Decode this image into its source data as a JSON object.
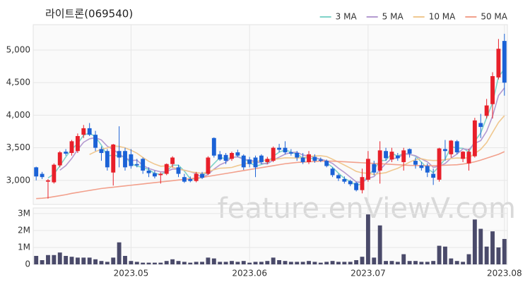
{
  "watermark": "feature.enViewV.com",
  "chart_data": [
    {
      "type": "candlestick",
      "title": "라이트론(069540)",
      "open": [
        3200,
        3100,
        2980,
        2970,
        3230,
        3440,
        3420,
        3450,
        3700,
        3800,
        3700,
        3480,
        3450,
        3120,
        3450,
        3450,
        3400,
        3250,
        3330,
        3150,
        3110,
        3080,
        3100,
        3250,
        3200,
        3050,
        3020,
        2990,
        3100,
        3100,
        3650,
        3400,
        3390,
        3330,
        3430,
        3380,
        3320,
        3350,
        3380,
        3280,
        3300,
        3500,
        3500,
        3430,
        3420,
        3350,
        3280,
        3360,
        3320,
        3300,
        3180,
        3080,
        3020,
        2990,
        2960,
        2850,
        3010,
        3250,
        3150,
        3450,
        3320,
        3380,
        3280,
        3480,
        3300,
        3230,
        3220,
        3100,
        3010,
        3480,
        3400,
        3600,
        3330,
        3260,
        3370,
        3880,
        3990,
        4170,
        4580,
        5140
      ],
      "high": [
        3210,
        3130,
        3020,
        3260,
        3450,
        3480,
        3620,
        3720,
        3850,
        3880,
        3760,
        3520,
        3480,
        3560,
        3830,
        3500,
        3480,
        3330,
        3350,
        3200,
        3150,
        3120,
        3260,
        3370,
        3240,
        3100,
        3060,
        3130,
        3130,
        3370,
        3660,
        3450,
        3420,
        3440,
        3470,
        3400,
        3360,
        3380,
        3400,
        3360,
        3520,
        3560,
        3600,
        3480,
        3450,
        3420,
        3450,
        3400,
        3350,
        3320,
        3200,
        3100,
        3060,
        3010,
        2980,
        3180,
        3450,
        3300,
        3600,
        3500,
        3500,
        3420,
        3500,
        3490,
        3350,
        3280,
        3260,
        3180,
        3500,
        3620,
        3620,
        3620,
        3450,
        3480,
        3960,
        4020,
        4250,
        4660,
        5170,
        5250
      ],
      "low": [
        3000,
        3020,
        2720,
        2950,
        3200,
        3380,
        3380,
        3420,
        3650,
        3680,
        3450,
        3300,
        3150,
        2920,
        3200,
        3150,
        3180,
        3200,
        3100,
        3050,
        3030,
        2950,
        3080,
        3200,
        3050,
        2960,
        2970,
        2970,
        3020,
        3080,
        3350,
        3300,
        3250,
        3300,
        3360,
        3160,
        3200,
        3050,
        3250,
        3250,
        3280,
        3430,
        3400,
        3380,
        3300,
        3250,
        3250,
        3270,
        3280,
        3200,
        3050,
        2990,
        2950,
        2910,
        2830,
        2800,
        2980,
        3080,
        2950,
        3300,
        3280,
        3300,
        3150,
        3350,
        3180,
        3150,
        3050,
        2930,
        2980,
        3300,
        3350,
        3400,
        3280,
        3150,
        3350,
        3650,
        3950,
        3950,
        4550,
        4300
      ],
      "close": [
        3060,
        3050,
        3000,
        3240,
        3430,
        3410,
        3600,
        3680,
        3800,
        3700,
        3500,
        3420,
        3200,
        3550,
        3350,
        3200,
        3220,
        3230,
        3150,
        3110,
        3060,
        3100,
        3250,
        3350,
        3100,
        2980,
        2990,
        3100,
        3040,
        3350,
        3380,
        3320,
        3300,
        3420,
        3380,
        3200,
        3250,
        3200,
        3280,
        3330,
        3500,
        3470,
        3430,
        3410,
        3350,
        3280,
        3400,
        3300,
        3300,
        3220,
        3080,
        3030,
        2980,
        2940,
        2850,
        3050,
        3330,
        3120,
        3460,
        3340,
        3440,
        3340,
        3460,
        3410,
        3240,
        3190,
        3120,
        3040,
        3490,
        3450,
        3610,
        3430,
        3440,
        3440,
        3920,
        3820,
        4150,
        4600,
        5020,
        4500
      ],
      "up_color": "#e8202a",
      "down_color": "#1b62d6",
      "series": [
        {
          "name": "3 MA",
          "color": "#7fd3c8",
          "values": [
            null,
            null,
            3037,
            3097,
            3223,
            3360,
            3480,
            3563,
            3693,
            3727,
            3667,
            3540,
            3373,
            3390,
            3367,
            3367,
            3257,
            3217,
            3200,
            3163,
            3107,
            3090,
            3137,
            3233,
            3233,
            3143,
            3023,
            3023,
            3043,
            3163,
            3257,
            3350,
            3333,
            3347,
            3367,
            3333,
            3277,
            3217,
            3243,
            3270,
            3370,
            3433,
            3467,
            3437,
            3397,
            3347,
            3343,
            3327,
            3333,
            3273,
            3200,
            3110,
            3030,
            2983,
            2923,
            2947,
            3077,
            3167,
            3303,
            3307,
            3413,
            3373,
            3413,
            3403,
            3370,
            3280,
            3183,
            3117,
            3217,
            3327,
            3517,
            3497,
            3493,
            3437,
            3600,
            3727,
            3963,
            4190,
            4590,
            4707
          ]
        },
        {
          "name": "5 MA",
          "color": "#b49ad0",
          "values": [
            null,
            null,
            null,
            null,
            3156,
            3226,
            3336,
            3472,
            3584,
            3638,
            3656,
            3620,
            3524,
            3474,
            3404,
            3344,
            3304,
            3310,
            3230,
            3182,
            3154,
            3130,
            3134,
            3174,
            3172,
            3156,
            3134,
            3104,
            3042,
            3092,
            3172,
            3238,
            3278,
            3354,
            3360,
            3324,
            3310,
            3290,
            3262,
            3252,
            3312,
            3356,
            3402,
            3428,
            3432,
            3388,
            3374,
            3348,
            3326,
            3300,
            3260,
            3186,
            3122,
            3050,
            2976,
            2970,
            3030,
            3058,
            3162,
            3260,
            3338,
            3340,
            3408,
            3398,
            3378,
            3328,
            3284,
            3200,
            3216,
            3258,
            3342,
            3404,
            3484,
            3474,
            3568,
            3610,
            3754,
            3986,
            4302,
            4418
          ]
        },
        {
          "name": "10 MA",
          "color": "#f0c890",
          "values": [
            null,
            null,
            null,
            null,
            null,
            null,
            null,
            null,
            null,
            3397,
            3441,
            3478,
            3498,
            3529,
            3521,
            3500,
            3462,
            3417,
            3352,
            3293,
            3249,
            3217,
            3222,
            3202,
            3177,
            3155,
            3132,
            3119,
            3108,
            3132,
            3164,
            3186,
            3191,
            3198,
            3226,
            3248,
            3274,
            3284,
            3308,
            3306,
            3318,
            3333,
            3346,
            3345,
            3342,
            3350,
            3365,
            3375,
            3377,
            3366,
            3324,
            3280,
            3235,
            3188,
            3138,
            3115,
            3108,
            3090,
            3106,
            3118,
            3154,
            3185,
            3233,
            3280,
            3319,
            3333,
            3312,
            3304,
            3307,
            3318,
            3335,
            3344,
            3342,
            3345,
            3413,
            3476,
            3579,
            3735,
            3888,
            3993
          ]
        },
        {
          "name": "50 MA",
          "color": "#f2a08c",
          "values": [
            2720,
            2725,
            2735,
            2750,
            2765,
            2780,
            2800,
            2815,
            2830,
            2845,
            2860,
            2875,
            2885,
            2895,
            2905,
            2915,
            2925,
            2935,
            2945,
            2955,
            2965,
            2975,
            2985,
            2995,
            3005,
            3015,
            3025,
            3035,
            3045,
            3060,
            3075,
            3090,
            3105,
            3120,
            3135,
            3150,
            3165,
            3180,
            3195,
            3210,
            3225,
            3240,
            3255,
            3265,
            3275,
            3280,
            3285,
            3290,
            3295,
            3295,
            3295,
            3290,
            3285,
            3280,
            3275,
            3270,
            3265,
            3260,
            3255,
            3250,
            3245,
            3240,
            3235,
            3230,
            3228,
            3226,
            3225,
            3225,
            3228,
            3232,
            3236,
            3240,
            3250,
            3265,
            3285,
            3310,
            3340,
            3370,
            3400,
            3440
          ]
        }
      ],
      "ylim": [
        2630,
        5390
      ],
      "yticks": [
        {
          "value": 3000,
          "label": "3,000"
        },
        {
          "value": 3500,
          "label": "3,500"
        },
        {
          "value": 4000,
          "label": "4,000"
        },
        {
          "value": 4500,
          "label": "4,500"
        },
        {
          "value": 5000,
          "label": "5,000"
        }
      ],
      "grid": true,
      "legend": "top-right"
    },
    {
      "type": "bar",
      "color": "#4a4a6a",
      "categories": [
        null,
        null,
        null,
        null,
        null,
        null,
        null,
        null,
        null,
        null,
        null,
        null,
        null,
        null,
        null,
        null,
        "2023.05",
        null,
        null,
        null,
        null,
        null,
        null,
        null,
        null,
        null,
        null,
        null,
        null,
        null,
        null,
        null,
        null,
        null,
        null,
        null,
        "2023.06",
        null,
        null,
        null,
        null,
        null,
        null,
        null,
        null,
        null,
        null,
        null,
        null,
        null,
        null,
        null,
        null,
        null,
        null,
        null,
        "2023.07",
        null,
        null,
        null,
        null,
        null,
        null,
        null,
        null,
        null,
        null,
        null,
        null,
        null,
        null,
        null,
        null,
        null,
        null,
        null,
        null,
        null,
        null,
        "2023.08"
      ],
      "values": [
        500000,
        250000,
        550000,
        550000,
        700000,
        500000,
        450000,
        400000,
        400000,
        400000,
        300000,
        200000,
        150000,
        400000,
        1300000,
        500000,
        200000,
        150000,
        100000,
        100000,
        100000,
        100000,
        200000,
        300000,
        200000,
        150000,
        100000,
        150000,
        150000,
        400000,
        350000,
        150000,
        150000,
        200000,
        150000,
        200000,
        100000,
        150000,
        150000,
        200000,
        400000,
        250000,
        200000,
        150000,
        150000,
        150000,
        200000,
        150000,
        100000,
        150000,
        200000,
        150000,
        150000,
        150000,
        250000,
        450000,
        2950000,
        400000,
        2300000,
        200000,
        200000,
        150000,
        600000,
        200000,
        200000,
        150000,
        150000,
        200000,
        1100000,
        1050000,
        350000,
        200000,
        150000,
        600000,
        2650000,
        2100000,
        1050000,
        1950000,
        1000000,
        1500000
      ],
      "ylim": [
        0,
        3330000
      ],
      "yticks": [
        0,
        {
          "value": 1000000,
          "label": "1M"
        },
        {
          "value": 2000000,
          "label": "2M"
        },
        {
          "value": 3000000,
          "label": "3M"
        }
      ],
      "grid": true
    }
  ]
}
